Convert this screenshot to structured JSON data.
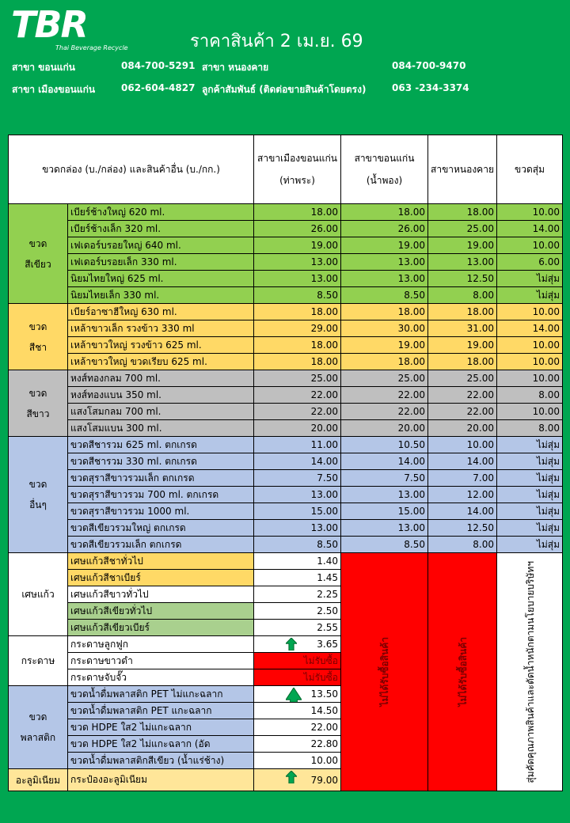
{
  "header": {
    "logo": "TBR",
    "logo_tagline": "Thai Beverage Recycle",
    "title": "ราคาสินค้า 2 เม.ย. 69",
    "contacts": [
      [
        "สาขา ขอนแก่น",
        "084-700-5291",
        "สาขา หนองคาย",
        "084-700-9470"
      ],
      [
        "สาขา เมืองขอนแก่น",
        "062-604-4827",
        "ลูกค้าสัมพันธ์ (ติดต่อขายสินค้าโดยตรง)",
        "063 -234-3374"
      ]
    ]
  },
  "table": {
    "columns": [
      "ขวดกล่อง (บ./กล่อง) และสินค้าอื่น (บ./กก.)",
      "สาขาเมืองขอนแก่น (ท่าพระ)",
      "สาขาขอนแก่น (น้ำพอง)",
      "สาขาหนองคาย",
      "ขวดสุ่ม"
    ],
    "not_buying": [
      "ไม่ได้รับซื้อสินค้า",
      "ไม่ได้รับซื้อสินค้า"
    ],
    "random_note": "สุ่มคัดคุณภาพสินค้าและตัดน้ำหนักตามนโยบายบริษัทฯ",
    "groups": [
      {
        "label": "ขวด\nสีเขียว",
        "color": "#92d050",
        "rows": [
          {
            "name": "เบียร์ช้างใหญ่ 620 ml.",
            "prices": [
              "18.00",
              "18.00",
              "18.00",
              "10.00"
            ]
          },
          {
            "name": "เบียร์ช้างเล็ก 320 ml.",
            "prices": [
              "26.00",
              "26.00",
              "25.00",
              "14.00"
            ]
          },
          {
            "name": "เฟเดอร์บรอยใหญ่ 640 ml.",
            "prices": [
              "19.00",
              "19.00",
              "19.00",
              "10.00"
            ]
          },
          {
            "name": "เฟเดอร์บรอยเล็ก 330 ml.",
            "prices": [
              "13.00",
              "13.00",
              "13.00",
              "6.00"
            ]
          },
          {
            "name": "นิยมไทยใหญ่  625 ml.",
            "prices": [
              "13.00",
              "13.00",
              "12.50",
              "ไม่สุ่ม"
            ]
          },
          {
            "name": "นิยมไทยเล็ก  330 ml.",
            "prices": [
              "8.50",
              "8.50",
              "8.00",
              "ไม่สุ่ม"
            ]
          }
        ]
      },
      {
        "label": "ขวด\nสีชา",
        "color": "#ffd966",
        "rows": [
          {
            "name": "เบียร์อาซาฮีใหญ่ 630 ml.",
            "prices": [
              "18.00",
              "18.00",
              "18.00",
              "10.00"
            ]
          },
          {
            "name": "เหล้าขาวเล็ก รวงข้าว 330 ml",
            "prices": [
              "29.00",
              "30.00",
              "31.00",
              "14.00"
            ]
          },
          {
            "name": "เหล้าขาวใหญ่ รวงข้าว 625 ml.",
            "prices": [
              "18.00",
              "19.00",
              "19.00",
              "10.00"
            ]
          },
          {
            "name": "เหล้าขาวใหญ่ ขวดเรียบ 625 ml.",
            "prices": [
              "18.00",
              "18.00",
              "18.00",
              "10.00"
            ]
          }
        ]
      },
      {
        "label": "ขวด\nสีขาว",
        "color": "#bfbfbf",
        "rows": [
          {
            "name": "หงส์ทองกลม 700 ml.",
            "prices": [
              "25.00",
              "25.00",
              "25.00",
              "10.00"
            ]
          },
          {
            "name": "หงส์ทองแบน 350 ml.",
            "prices": [
              "22.00",
              "22.00",
              "22.00",
              "8.00"
            ]
          },
          {
            "name": "แสงโสมกลม 700 ml.",
            "prices": [
              "22.00",
              "22.00",
              "22.00",
              "10.00"
            ]
          },
          {
            "name": "แสงโสมแบน 300 ml.",
            "prices": [
              "20.00",
              "20.00",
              "20.00",
              "8.00"
            ]
          }
        ]
      },
      {
        "label": "ขวด\nอื่นๆ",
        "color": "#b4c6e7",
        "rows": [
          {
            "name": "ขวดสีชารวม 625 ml. ตกเกรด",
            "prices": [
              "11.00",
              "10.50",
              "10.00",
              "ไม่สุ่ม"
            ]
          },
          {
            "name": "ขวดสีชารวม 330 ml. ตกเกรด",
            "prices": [
              "14.00",
              "14.00",
              "14.00",
              "ไม่สุ่ม"
            ]
          },
          {
            "name": "ขวดสุราสีขาวรวมเล็ก ตกเกรด",
            "prices": [
              "7.50",
              "7.50",
              "7.00",
              "ไม่สุ่ม"
            ]
          },
          {
            "name": "ขวดสุราสีขาวรวม 700 ml. ตกเกรด",
            "prices": [
              "13.00",
              "13.00",
              "12.00",
              "ไม่สุ่ม"
            ]
          },
          {
            "name": "ขวดสุราสีขาวรวม 1000 ml.",
            "prices": [
              "15.00",
              "15.00",
              "14.00",
              "ไม่สุ่ม"
            ]
          },
          {
            "name": "ขวดสีเขียวรวมใหญ่ ตกเกรด",
            "prices": [
              "13.00",
              "13.00",
              "12.50",
              "ไม่สุ่ม"
            ]
          },
          {
            "name": "ขวดสีเขียวรวมเล็ก  ตกเกรด",
            "prices": [
              "8.50",
              "8.50",
              "8.00",
              "ไม่สุ่ม"
            ]
          }
        ]
      },
      {
        "label": "เศษแก้ว",
        "color": "#ffffff",
        "price_color": "#ffffff",
        "rows": [
          {
            "name": "เศษแก้วสีชาทั่วไป",
            "color": "#ffd966",
            "prices": [
              "1.40"
            ]
          },
          {
            "name": "เศษแก้วสีชาเบียร์",
            "color": "#ffd966",
            "prices": [
              "1.45"
            ]
          },
          {
            "name": "เศษแก้วสีขาวทั่วไป",
            "prices": [
              "2.25"
            ]
          },
          {
            "name": "เศษแก้วสีเขียวทั่วไป",
            "color": "#a9d08e",
            "prices": [
              "2.50"
            ]
          },
          {
            "name": "เศษแก้วสีเขียวเบียร์",
            "color": "#a9d08e",
            "prices": [
              "2.55"
            ]
          }
        ]
      },
      {
        "label": "กระดาษ",
        "color": "#ffffff",
        "price_color": "#ffffff",
        "rows": [
          {
            "name": "กระดาษลูกฟูก",
            "prices": [
              "3.65"
            ],
            "trend": "up"
          },
          {
            "name": "กระดาษขาวดำ",
            "prices": [
              "ไม่รับซื้อ"
            ],
            "price_color": "#ff0000"
          },
          {
            "name": "กระดาษจับจั๊ว",
            "prices": [
              "ไม่รับซื้อ"
            ],
            "price_color": "#ff0000"
          }
        ]
      },
      {
        "label": "ขวด\nพลาสติก",
        "color": "#b4c6e7",
        "price_color": "#ffffff",
        "rows": [
          {
            "name": "ขวดน้ำดื่มพลาสติก PET ไม่แกะฉลาก",
            "prices": [
              "13.50"
            ],
            "trend": "up"
          },
          {
            "name": "ขวดน้ำดื่มพลาสติก PET แกะฉลาก",
            "prices": [
              "14.50"
            ]
          },
          {
            "name": "ขวด HDPE ใส2 ไม่แกะฉลาก",
            "prices": [
              "22.00"
            ]
          },
          {
            "name": "ขวด HDPE ใส2 ไม่แกะฉลาก (อัด",
            "prices": [
              "22.80"
            ]
          },
          {
            "name": "ขวดน้ำดื่มพลาสติกสีเขียว (น้ำแร่ช้าง)",
            "prices": [
              "10.00"
            ]
          }
        ]
      },
      {
        "label": "อะลูมิเนียม",
        "color": "#ffe699",
        "price_color": "#ffe699",
        "rows": [
          {
            "name": "กระป๋องอะลูมิเนียม",
            "prices": [
              "79.00"
            ],
            "trend": "up"
          }
        ]
      }
    ]
  }
}
